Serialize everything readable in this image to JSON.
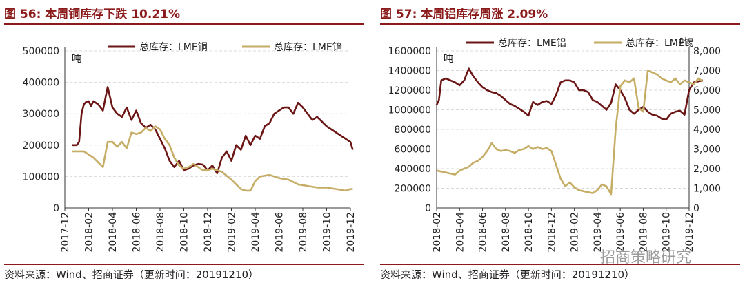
{
  "colors": {
    "copper": "#6b1515",
    "zinc": "#c6ad66",
    "title": "#8b1a1a"
  },
  "watermark": "招商策略研究",
  "chart_data": [
    {
      "type": "line",
      "title": "图 56:  本周铜库存下跌 10.21%",
      "source": "资料来源：Wind、招商证券（更新时间：20191210）",
      "ylabel": "吨",
      "ylim": [
        0,
        500000
      ],
      "yticks": [
        "500000",
        "400000",
        "300000",
        "200000",
        "100000",
        "0"
      ],
      "xticks": [
        "2017-12",
        "2018-02",
        "2018-04",
        "2018-06",
        "2018-08",
        "2018-10",
        "2018-12",
        "2019-02",
        "2019-04",
        "2019-06",
        "2019-08",
        "2019-10",
        "2019-12"
      ],
      "legend_position": "top",
      "series": [
        {
          "name": "总库存：LME铜",
          "color": "#6b1515",
          "axis": "left",
          "x": [
            0.3,
            0.5,
            0.6,
            0.7,
            0.8,
            0.9,
            1.0,
            1.1,
            1.2,
            1.4,
            1.6,
            1.8,
            2.0,
            2.2,
            2.4,
            2.6,
            2.8,
            3.0,
            3.2,
            3.4,
            3.6,
            3.8,
            4.0,
            4.2,
            4.4,
            4.6,
            4.8,
            5.0,
            5.2,
            5.4,
            5.6,
            5.8,
            6.0,
            6.2,
            6.4,
            6.6,
            6.8,
            7.0,
            7.2,
            7.4,
            7.6,
            7.8,
            8.0,
            8.2,
            8.4,
            8.6,
            8.8,
            9.0,
            9.2,
            9.4,
            9.6,
            9.8,
            10.0,
            10.2,
            10.4,
            10.6,
            10.8,
            11.0,
            11.2,
            11.4,
            11.6,
            11.8,
            12.0,
            12.1
          ],
          "values": [
            200000,
            200000,
            210000,
            300000,
            330000,
            338000,
            340000,
            325000,
            340000,
            330000,
            310000,
            385000,
            320000,
            300000,
            290000,
            320000,
            280000,
            310000,
            270000,
            255000,
            265000,
            250000,
            220000,
            190000,
            150000,
            130000,
            150000,
            120000,
            125000,
            135000,
            140000,
            138000,
            120000,
            135000,
            110000,
            160000,
            180000,
            150000,
            200000,
            185000,
            230000,
            200000,
            230000,
            220000,
            260000,
            270000,
            300000,
            310000,
            320000,
            320000,
            300000,
            335000,
            320000,
            300000,
            280000,
            290000,
            275000,
            260000,
            250000,
            240000,
            230000,
            220000,
            210000,
            185000
          ]
        },
        {
          "name": "总库存：LME锌",
          "color": "#c6ad66",
          "axis": "left",
          "x": [
            0.3,
            0.8,
            1.2,
            1.6,
            1.8,
            2.0,
            2.2,
            2.4,
            2.6,
            2.8,
            3.0,
            3.2,
            3.4,
            3.6,
            3.8,
            4.0,
            4.2,
            4.4,
            4.6,
            4.8,
            5.0,
            5.2,
            5.4,
            5.6,
            5.8,
            6.0,
            6.2,
            6.6,
            7.0,
            7.2,
            7.4,
            7.6,
            7.8,
            8.0,
            8.2,
            8.6,
            9.0,
            9.4,
            9.8,
            10.2,
            10.6,
            11.0,
            11.4,
            11.8,
            12.0,
            12.1
          ],
          "values": [
            180000,
            180000,
            160000,
            130000,
            210000,
            210000,
            195000,
            210000,
            190000,
            240000,
            235000,
            240000,
            255000,
            245000,
            260000,
            250000,
            220000,
            200000,
            160000,
            135000,
            125000,
            130000,
            140000,
            130000,
            120000,
            120000,
            125000,
            115000,
            90000,
            75000,
            60000,
            55000,
            55000,
            85000,
            100000,
            105000,
            95000,
            90000,
            75000,
            70000,
            65000,
            65000,
            60000,
            55000,
            60000,
            60000
          ]
        }
      ]
    },
    {
      "type": "line",
      "title": "图 57:  本周铝库存周涨 2.09%",
      "source": "资料来源：Wind、招商证券（更新时间：20191210）",
      "ylabel": "吨",
      "y2label": "吨",
      "ylim": [
        0,
        1600000
      ],
      "y2lim": [
        0,
        8000
      ],
      "yticks": [
        "1600000",
        "1400000",
        "1200000",
        "1000000",
        "800000",
        "600000",
        "400000",
        "200000",
        "0"
      ],
      "y2ticks": [
        "8,000",
        "7,000",
        "6,000",
        "5,000",
        "4,000",
        "3,000",
        "2,000",
        "1,000",
        "0"
      ],
      "xticks": [
        "2018-02",
        "2018-04",
        "2018-06",
        "2018-08",
        "2018-10",
        "2018-12",
        "2019-02",
        "2019-04",
        "2019-06",
        "2019-08",
        "2019-10",
        "2019-12"
      ],
      "legend_position": "top",
      "series": [
        {
          "name": "总库存：LME铝",
          "color": "#6b1515",
          "axis": "left",
          "x": [
            0.0,
            0.1,
            0.2,
            0.4,
            0.6,
            0.8,
            1.0,
            1.2,
            1.4,
            1.6,
            1.8,
            2.0,
            2.2,
            2.4,
            2.6,
            2.8,
            3.0,
            3.2,
            3.4,
            3.6,
            3.8,
            4.0,
            4.2,
            4.4,
            4.6,
            4.8,
            5.0,
            5.2,
            5.4,
            5.6,
            5.8,
            6.0,
            6.2,
            6.4,
            6.6,
            6.8,
            7.0,
            7.2,
            7.4,
            7.6,
            7.8,
            8.0,
            8.2,
            8.4,
            8.6,
            8.8,
            9.0,
            9.2,
            9.4,
            9.6,
            9.8,
            10.0,
            10.2,
            10.4,
            10.6,
            10.8,
            11.0,
            11.2,
            11.4,
            11.6
          ],
          "values": [
            1050000,
            1100000,
            1300000,
            1320000,
            1300000,
            1280000,
            1250000,
            1300000,
            1420000,
            1340000,
            1280000,
            1230000,
            1200000,
            1180000,
            1170000,
            1140000,
            1100000,
            1060000,
            1040000,
            1010000,
            980000,
            940000,
            1080000,
            1050000,
            1080000,
            1090000,
            1060000,
            1150000,
            1280000,
            1300000,
            1300000,
            1280000,
            1200000,
            1200000,
            1180000,
            1100000,
            1080000,
            1040000,
            1000000,
            1070000,
            1260000,
            1200000,
            1120000,
            1000000,
            960000,
            1000000,
            1030000,
            980000,
            950000,
            940000,
            910000,
            900000,
            960000,
            980000,
            990000,
            950000,
            1200000,
            1280000,
            1290000,
            1300000
          ]
        },
        {
          "name": "总库存：LME锡",
          "color": "#c6ad66",
          "axis": "right",
          "x": [
            0.0,
            0.4,
            0.8,
            1.0,
            1.2,
            1.4,
            1.6,
            1.8,
            2.0,
            2.2,
            2.4,
            2.6,
            2.8,
            3.0,
            3.2,
            3.4,
            3.6,
            3.8,
            4.0,
            4.2,
            4.4,
            4.6,
            4.8,
            5.0,
            5.2,
            5.4,
            5.6,
            5.8,
            6.0,
            6.2,
            6.4,
            6.6,
            6.8,
            7.0,
            7.2,
            7.4,
            7.6,
            7.8,
            8.0,
            8.2,
            8.4,
            8.6,
            8.8,
            9.0,
            9.2,
            9.4,
            9.6,
            9.8,
            10.0,
            10.2,
            10.4,
            10.6,
            10.8,
            11.0,
            11.2,
            11.4,
            11.6
          ],
          "values": [
            1900,
            1800,
            1700,
            1900,
            2000,
            2100,
            2300,
            2400,
            2600,
            2900,
            3300,
            3000,
            2900,
            2950,
            2900,
            2800,
            2950,
            3000,
            3150,
            3000,
            3100,
            3000,
            3050,
            2900,
            2200,
            1500,
            1100,
            1300,
            1050,
            900,
            850,
            800,
            750,
            900,
            1200,
            1100,
            700,
            4000,
            6200,
            6500,
            6400,
            6600,
            5100,
            4900,
            7000,
            6900,
            6800,
            6600,
            6500,
            6400,
            6600,
            6300,
            6500,
            6400,
            6300,
            6600,
            6450
          ]
        }
      ]
    }
  ]
}
